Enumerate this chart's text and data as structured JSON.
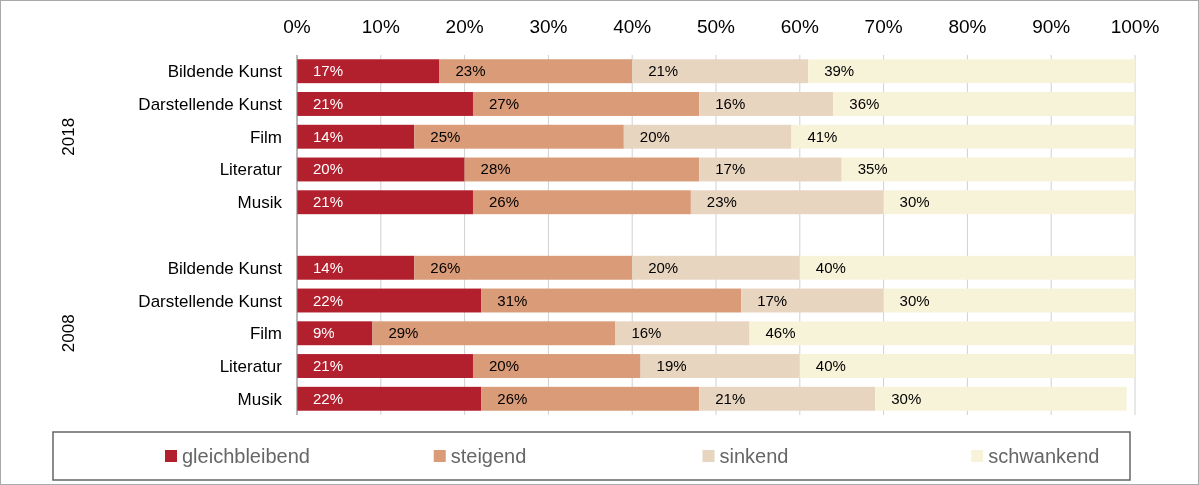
{
  "chart_data": {
    "type": "bar",
    "orientation": "horizontal",
    "stacked": true,
    "categories": [
      "Bildende Kunst",
      "Darstellende Kunst",
      "Film",
      "Literatur",
      "Musik",
      null,
      "Bildende Kunst",
      "Darstellende Kunst",
      "Film",
      "Literatur",
      "Musik"
    ],
    "series": [
      {
        "name": "gleichbleibend",
        "color": "#b21f2d",
        "values": [
          17,
          21,
          14,
          20,
          21,
          null,
          14,
          22,
          9,
          21,
          22
        ],
        "value_labels": [
          "17%",
          "21%",
          "14%",
          "20%",
          "21%",
          null,
          "14%",
          "22%",
          "9%",
          "21%",
          "22%"
        ]
      },
      {
        "name": "steigend",
        "color": "#d99b78",
        "values": [
          23,
          27,
          25,
          28,
          26,
          null,
          26,
          31,
          29,
          20,
          26
        ],
        "value_labels": [
          "23%",
          "27%",
          "25%",
          "28%",
          "26%",
          null,
          "26%",
          "31%",
          "29%",
          "20%",
          "26%"
        ]
      },
      {
        "name": "sinkend",
        "color": "#e8d5c0",
        "values": [
          21,
          16,
          20,
          17,
          23,
          null,
          20,
          17,
          16,
          19,
          21
        ],
        "value_labels": [
          "21%",
          "16%",
          "20%",
          "17%",
          "23%",
          null,
          "20%",
          "17%",
          "16%",
          "19%",
          "21%"
        ]
      },
      {
        "name": "schwankend",
        "color": "#f7f3d9",
        "values": [
          39,
          36,
          41,
          35,
          30,
          null,
          40,
          30,
          46,
          40,
          30
        ],
        "value_labels": [
          "39%",
          "36%",
          "41%",
          "35%",
          "30%",
          null,
          "40%",
          "30%",
          "46%",
          "40%",
          "30%"
        ]
      }
    ],
    "xlim": [
      0,
      100
    ],
    "xticks": [
      {
        "value": 0,
        "label": "0%"
      },
      {
        "value": 10,
        "label": "10%"
      },
      {
        "value": 20,
        "label": "20%"
      },
      {
        "value": 30,
        "label": "30%"
      },
      {
        "value": 40,
        "label": "40%"
      },
      {
        "value": 50,
        "label": "50%"
      },
      {
        "value": 60,
        "label": "60%"
      },
      {
        "value": 70,
        "label": "70%"
      },
      {
        "value": 80,
        "label": "80%"
      },
      {
        "value": 90,
        "label": "90%"
      },
      {
        "value": 100,
        "label": "100%"
      }
    ],
    "grid": "x",
    "legend": "bottom",
    "annotations": [
      "2018",
      "2008"
    ]
  }
}
